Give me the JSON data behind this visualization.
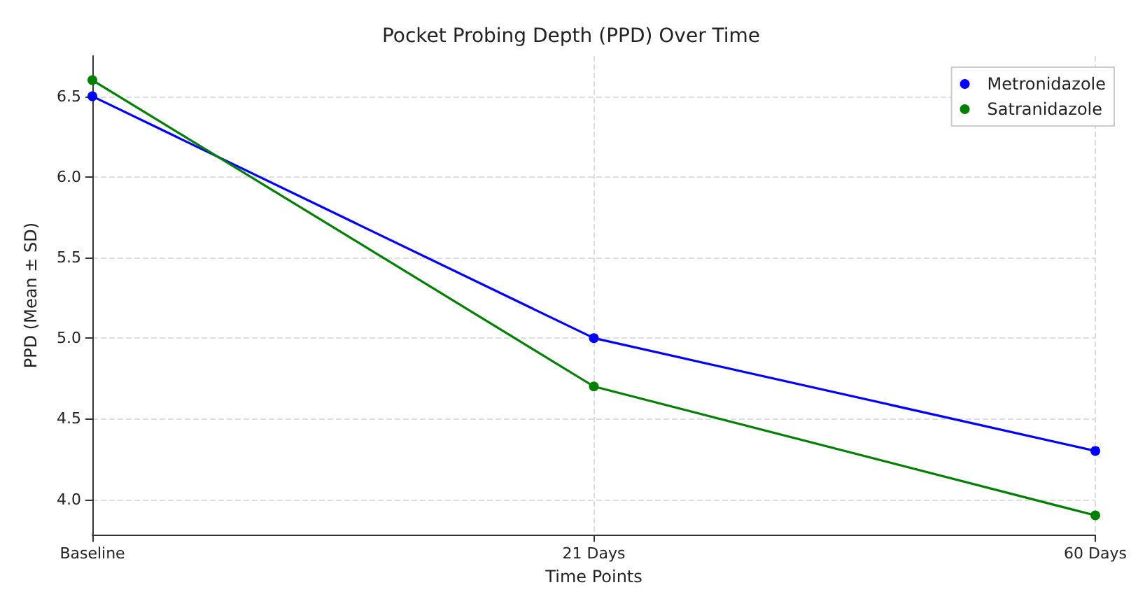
{
  "chart_data": {
    "type": "line",
    "title": "Pocket Probing Depth (PPD) Over Time",
    "xlabel": "Time Points",
    "ylabel": "PPD (Mean ± SD)",
    "categories": [
      "Baseline",
      "21 Days",
      "60 Days"
    ],
    "series": [
      {
        "name": "Metronidazole",
        "color": "#0000ff",
        "values": [
          6.5,
          5.0,
          4.3
        ]
      },
      {
        "name": "Satranidazole",
        "color": "#008000",
        "values": [
          6.6,
          4.7,
          3.9
        ]
      }
    ],
    "ylim": [
      3.78,
      6.75
    ],
    "yticks": [
      {
        "value": 4.0,
        "label": "4.0"
      },
      {
        "value": 4.5,
        "label": "4.5"
      },
      {
        "value": 5.0,
        "label": "5.0"
      },
      {
        "value": 5.5,
        "label": "5.5"
      },
      {
        "value": 6.0,
        "label": "6.0"
      },
      {
        "value": 6.5,
        "label": "6.5"
      }
    ],
    "grid": true,
    "legend": "top right",
    "marker": "circle",
    "line_style": "solid"
  }
}
